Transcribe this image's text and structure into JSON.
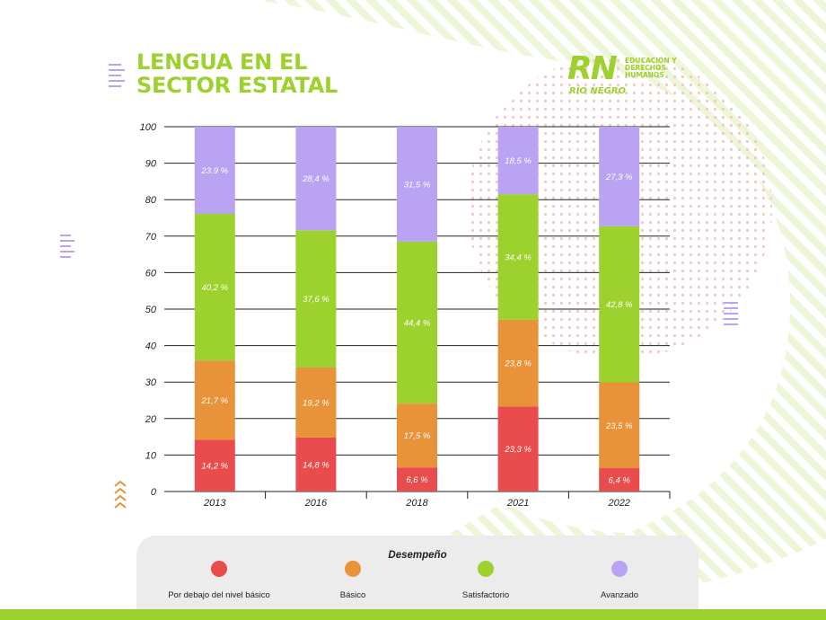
{
  "header": {
    "title_line1": "LENGUA EN EL",
    "title_line2": "SECTOR ESTATAL"
  },
  "logo": {
    "mark": "RN",
    "tagline": "EDUCACIÓN Y DERECHOS HUMANOS",
    "name": "RÍO NEGRO"
  },
  "colors": {
    "accent": "#9dd12e",
    "por_debajo": "#e84c4c",
    "basico": "#e8923a",
    "satisfactorio": "#9dd12e",
    "avanzado": "#b9a3f2"
  },
  "chart_data": {
    "type": "bar",
    "stacked": true,
    "categories": [
      "2013",
      "2016",
      "2018",
      "2021",
      "2022"
    ],
    "ylim": [
      0,
      100
    ],
    "yticks": [
      "0",
      "10",
      "20",
      "30",
      "40",
      "50",
      "60",
      "70",
      "80",
      "90",
      "100"
    ],
    "grid": true,
    "legend_position": "bottom",
    "series": [
      {
        "name": "Por debajo del nivel básico",
        "color": "#e84c4c",
        "values": [
          14.2,
          14.8,
          6.6,
          23.3,
          6.4
        ],
        "labels": [
          "14,2 %",
          "14,8 %",
          "6,6 %",
          "23,3 %",
          "6,4 %"
        ]
      },
      {
        "name": "Básico",
        "color": "#e8923a",
        "values": [
          21.7,
          19.2,
          17.5,
          23.8,
          23.5
        ],
        "labels": [
          "21,7 %",
          "19,2 %",
          "17,5 %",
          "23,8 %",
          "23,5 %"
        ]
      },
      {
        "name": "Satisfactorio",
        "color": "#9dd12e",
        "values": [
          40.2,
          37.6,
          44.4,
          34.4,
          42.8
        ],
        "labels": [
          "40,2 %",
          "37,6 %",
          "44,4 %",
          "34,4 %",
          "42,8 %"
        ]
      },
      {
        "name": "Avanzado",
        "color": "#b9a3f2",
        "values": [
          23.9,
          28.4,
          31.5,
          18.5,
          27.3
        ],
        "labels": [
          "23.9 %",
          "28,4 %",
          "31,5 %",
          "18,5 %",
          "27,3 %"
        ]
      }
    ]
  },
  "legend": {
    "title": "Desempeño",
    "items": [
      {
        "label": "Por debajo del nivel básico",
        "color": "#e84c4c"
      },
      {
        "label": "Básico",
        "color": "#e8923a"
      },
      {
        "label": "Satisfactorio",
        "color": "#9dd12e"
      },
      {
        "label": "Avanzado",
        "color": "#b9a3f2"
      }
    ]
  }
}
